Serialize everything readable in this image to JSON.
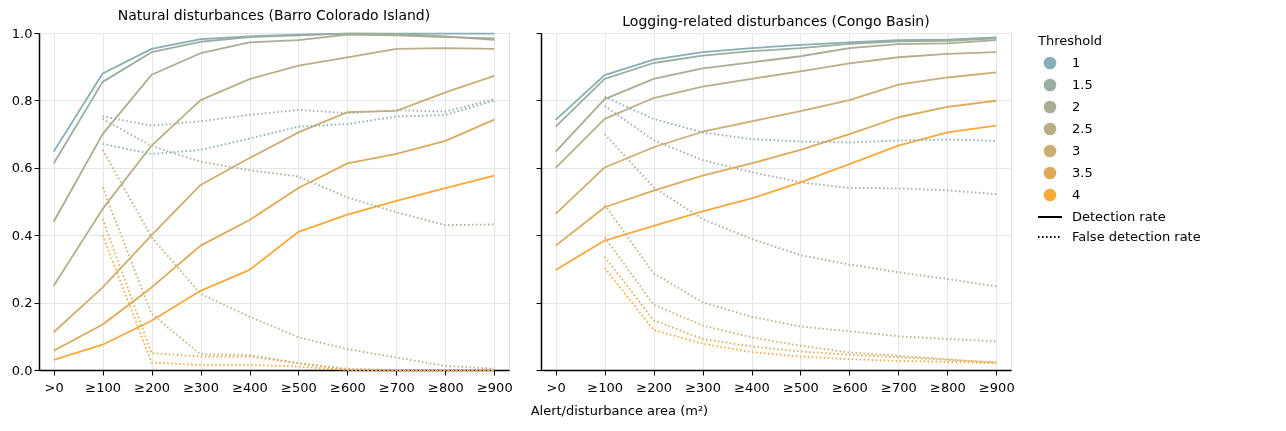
{
  "chart_data": [
    {
      "type": "line",
      "title": "Natural disturbances (Barro Colorado Island)",
      "xlabel": "Alert/disturbance area (m²)",
      "legend_title": "Threshold",
      "legend": "right",
      "grid": true,
      "marker": "none",
      "categories": [
        ">0",
        "≥100",
        "≥200",
        "≥300",
        "≥400",
        "≥500",
        "≥600",
        "≥700",
        "≥800",
        "≥900"
      ],
      "ylim": [
        0,
        1
      ],
      "yticks": [
        {
          "value": 0,
          "label": "0.0"
        },
        {
          "value": 0.2,
          "label": "0.2"
        },
        {
          "value": 0.4,
          "label": "0.4"
        },
        {
          "value": 0.6,
          "label": "0.6"
        },
        {
          "value": 0.8,
          "label": "0.8"
        },
        {
          "value": 1,
          "label": "1.0"
        }
      ],
      "annotations": [
        "Detection rate",
        "False detection rate"
      ],
      "series": [
        {
          "name": "1",
          "color": "#87adb6",
          "line_style": "solid",
          "values": [
            0.648,
            0.88,
            0.953,
            0.982,
            0.99,
            0.995,
            0.998,
            0.998,
            0.998,
            0.998
          ]
        },
        {
          "name": "1.5",
          "color": "#9aae9f",
          "line_style": "solid",
          "values": [
            0.613,
            0.855,
            0.943,
            0.974,
            0.988,
            0.993,
            0.998,
            0.997,
            0.99,
            0.98
          ]
        },
        {
          "name": "2",
          "color": "#a8ad93",
          "line_style": "solid",
          "values": [
            0.44,
            0.7,
            0.876,
            0.94,
            0.972,
            0.979,
            0.995,
            0.993,
            0.988,
            0.984
          ]
        },
        {
          "name": "2.5",
          "color": "#b9ae85",
          "line_style": "solid",
          "values": [
            0.25,
            0.478,
            0.666,
            0.801,
            0.863,
            0.903,
            0.928,
            0.953,
            0.955,
            0.953
          ]
        },
        {
          "name": "3",
          "color": "#cbaf72",
          "line_style": "solid",
          "values": [
            0.112,
            0.245,
            0.4,
            0.549,
            0.629,
            0.705,
            0.765,
            0.769,
            0.824,
            0.873
          ]
        },
        {
          "name": "3.5",
          "color": "#dcab5a",
          "line_style": "solid",
          "values": [
            0.057,
            0.135,
            0.245,
            0.369,
            0.445,
            0.54,
            0.613,
            0.641,
            0.68,
            0.743
          ]
        },
        {
          "name": "4",
          "color": "#f9a93b",
          "line_style": "solid",
          "values": [
            0.03,
            0.075,
            0.146,
            0.235,
            0.297,
            0.41,
            0.461,
            0.502,
            0.54,
            0.577
          ]
        },
        {
          "color": "#87adb6",
          "line_style": "dotted",
          "values": [
            null,
            0.671,
            0.641,
            0.653,
            0.687,
            0.722,
            0.73,
            0.752,
            0.757,
            0.799
          ]
        },
        {
          "color": "#9aae9f",
          "line_style": "dotted",
          "values": [
            null,
            0.753,
            0.725,
            0.738,
            0.757,
            0.772,
            0.762,
            0.771,
            0.767,
            0.804
          ]
        },
        {
          "color": "#a8ad93",
          "line_style": "dotted",
          "values": [
            null,
            0.745,
            0.665,
            0.618,
            0.593,
            0.574,
            0.512,
            0.468,
            0.43,
            0.432
          ]
        },
        {
          "color": "#b9ae85",
          "line_style": "dotted",
          "values": [
            null,
            0.653,
            0.394,
            0.226,
            0.158,
            0.097,
            0.062,
            0.037,
            0.012,
            0.004
          ]
        },
        {
          "color": "#cbaf72",
          "line_style": "dotted",
          "values": [
            null,
            0.542,
            0.166,
            0.047,
            0.045,
            0.02,
            0.004,
            0,
            0,
            0
          ]
        },
        {
          "color": "#dcab5a",
          "line_style": "dotted",
          "values": [
            null,
            0.448,
            0.05,
            0.04,
            0.04,
            0.02,
            0,
            0,
            0,
            0
          ]
        },
        {
          "color": "#f9a93b",
          "line_style": "dotted",
          "values": [
            null,
            0.4,
            0.022,
            0.015,
            0.015,
            0.01,
            0,
            0,
            0,
            0
          ]
        }
      ]
    },
    {
      "type": "line",
      "title": "Logging-related disturbances (Congo Basin)",
      "grid": true,
      "marker": "none",
      "tick_labels": "x",
      "categories": [
        ">0",
        "≥100",
        "≥200",
        "≥300",
        "≥400",
        "≥500",
        "≥600",
        "≥700",
        "≥800",
        "≥900"
      ],
      "ylim": [
        0,
        1
      ],
      "yticks": [
        0,
        0.2,
        0.4,
        0.6,
        0.8,
        1
      ],
      "series": [
        {
          "color": "#87adb6",
          "line_style": "solid",
          "values": [
            0.742,
            0.875,
            0.921,
            0.943,
            0.955,
            0.965,
            0.972,
            0.979,
            0.98,
            0.987
          ]
        },
        {
          "color": "#9aae9f",
          "line_style": "solid",
          "values": [
            0.722,
            0.864,
            0.911,
            0.933,
            0.946,
            0.955,
            0.968,
            0.975,
            0.977,
            0.984
          ]
        },
        {
          "color": "#a8ad93",
          "line_style": "solid",
          "values": [
            0.648,
            0.804,
            0.864,
            0.895,
            0.913,
            0.931,
            0.955,
            0.967,
            0.969,
            0.979
          ]
        },
        {
          "color": "#b9ae85",
          "line_style": "solid",
          "values": [
            0.6,
            0.745,
            0.807,
            0.841,
            0.864,
            0.886,
            0.91,
            0.928,
            0.938,
            0.943
          ]
        },
        {
          "color": "#cbaf72",
          "line_style": "solid",
          "values": [
            0.463,
            0.601,
            0.661,
            0.707,
            0.738,
            0.768,
            0.801,
            0.847,
            0.868,
            0.883
          ]
        },
        {
          "color": "#dcab5a",
          "line_style": "solid",
          "values": [
            0.369,
            0.483,
            0.532,
            0.577,
            0.613,
            0.653,
            0.7,
            0.75,
            0.781,
            0.799
          ]
        },
        {
          "color": "#f9a93b",
          "line_style": "solid",
          "values": [
            0.297,
            0.384,
            0.428,
            0.471,
            0.509,
            0.557,
            0.611,
            0.666,
            0.705,
            0.725
          ]
        },
        {
          "color": "#87adb6",
          "line_style": "dotted",
          "values": [
            null,
            0.811,
            0.745,
            0.705,
            0.685,
            0.678,
            0.675,
            0.681,
            0.684,
            0.68
          ]
        },
        {
          "color": "#9aae9f",
          "line_style": "dotted",
          "values": [
            null,
            0.784,
            0.682,
            0.623,
            0.587,
            0.557,
            0.54,
            0.539,
            0.533,
            0.522
          ]
        },
        {
          "color": "#a8ad93",
          "line_style": "dotted",
          "values": [
            null,
            0.7,
            0.542,
            0.448,
            0.389,
            0.341,
            0.313,
            0.29,
            0.27,
            0.248
          ]
        },
        {
          "color": "#b9ae85",
          "line_style": "dotted",
          "values": [
            null,
            0.49,
            0.287,
            0.201,
            0.158,
            0.129,
            0.115,
            0.1,
            0.092,
            0.085
          ]
        },
        {
          "color": "#cbaf72",
          "line_style": "dotted",
          "values": [
            null,
            0.394,
            0.194,
            0.132,
            0.097,
            0.072,
            0.052,
            0.042,
            0.032,
            0.022
          ]
        },
        {
          "color": "#dcab5a",
          "line_style": "dotted",
          "values": [
            null,
            0.336,
            0.148,
            0.092,
            0.07,
            0.055,
            0.045,
            0.038,
            0.03,
            0.022
          ]
        },
        {
          "color": "#f9a93b",
          "line_style": "dotted",
          "values": [
            null,
            0.303,
            0.119,
            0.078,
            0.053,
            0.04,
            0.032,
            0.027,
            0.024,
            0.02
          ]
        }
      ]
    }
  ]
}
